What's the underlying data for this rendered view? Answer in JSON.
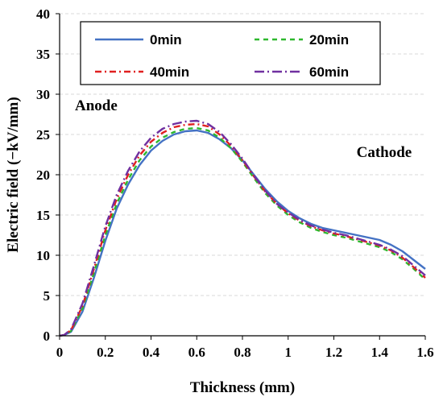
{
  "chart_data": {
    "type": "line",
    "title": "",
    "xlabel": "Thickness (mm)",
    "ylabel": "Electric field (−kV/mm)",
    "xlim": [
      0,
      1.6
    ],
    "ylim": [
      0,
      40
    ],
    "xticks": [
      0,
      0.2,
      0.4,
      0.6,
      0.8,
      1,
      1.2,
      1.4,
      1.6
    ],
    "xtick_labels": [
      "0",
      "0.2",
      "0.4",
      "0.6",
      "0.8",
      "1",
      "1.2",
      "1.4",
      "1.6"
    ],
    "yticks": [
      0,
      5,
      10,
      15,
      20,
      25,
      30,
      35,
      40
    ],
    "ytick_labels": [
      "0",
      "5",
      "10",
      "15",
      "20",
      "25",
      "30",
      "35",
      "40"
    ],
    "grid": "horizontal dashed",
    "legend_position": "top",
    "annotations": [
      {
        "text": "Anode",
        "x": 0.16,
        "y": 28
      },
      {
        "text": "Cathode",
        "x": 1.42,
        "y": 22.2
      }
    ],
    "series": [
      {
        "name": "0min",
        "color": "#4472c4",
        "dash": "solid",
        "x": [
          0,
          0.02,
          0.05,
          0.1,
          0.15,
          0.2,
          0.25,
          0.3,
          0.35,
          0.4,
          0.45,
          0.5,
          0.55,
          0.6,
          0.65,
          0.7,
          0.75,
          0.8,
          0.85,
          0.9,
          0.95,
          1.0,
          1.05,
          1.1,
          1.15,
          1.2,
          1.25,
          1.3,
          1.35,
          1.4,
          1.45,
          1.5,
          1.55,
          1.6
        ],
        "y": [
          0,
          0.1,
          0.5,
          3.0,
          7.2,
          11.8,
          15.8,
          18.8,
          21.2,
          23.0,
          24.2,
          25.0,
          25.4,
          25.5,
          25.2,
          24.4,
          23.3,
          21.8,
          20.0,
          18.2,
          16.7,
          15.5,
          14.6,
          13.9,
          13.4,
          13.1,
          12.8,
          12.5,
          12.2,
          11.9,
          11.3,
          10.5,
          9.4,
          8.3
        ]
      },
      {
        "name": "20min",
        "color": "#2eb82e",
        "dash": "6 5",
        "x": [
          0,
          0.02,
          0.05,
          0.1,
          0.15,
          0.2,
          0.25,
          0.3,
          0.35,
          0.4,
          0.45,
          0.5,
          0.55,
          0.6,
          0.65,
          0.7,
          0.75,
          0.8,
          0.85,
          0.9,
          0.95,
          1.0,
          1.05,
          1.1,
          1.15,
          1.2,
          1.25,
          1.3,
          1.35,
          1.4,
          1.45,
          1.5,
          1.55,
          1.6
        ],
        "y": [
          0,
          0.1,
          0.6,
          3.4,
          7.8,
          12.5,
          16.4,
          19.4,
          21.8,
          23.5,
          24.6,
          25.3,
          25.7,
          25.8,
          25.5,
          24.6,
          23.3,
          21.6,
          19.6,
          17.7,
          16.2,
          15.0,
          14.1,
          13.4,
          12.9,
          12.5,
          12.2,
          11.8,
          11.4,
          11.0,
          10.4,
          9.5,
          8.3,
          7.0
        ]
      },
      {
        "name": "40min",
        "color": "#e02020",
        "dash": "8 4 2 4",
        "x": [
          0,
          0.02,
          0.05,
          0.1,
          0.15,
          0.2,
          0.25,
          0.3,
          0.35,
          0.4,
          0.45,
          0.5,
          0.55,
          0.6,
          0.65,
          0.7,
          0.75,
          0.8,
          0.85,
          0.9,
          0.95,
          1.0,
          1.05,
          1.1,
          1.15,
          1.2,
          1.25,
          1.3,
          1.35,
          1.4,
          1.45,
          1.5,
          1.55,
          1.6
        ],
        "y": [
          0,
          0.1,
          0.7,
          3.7,
          8.3,
          13.1,
          17.0,
          20.0,
          22.4,
          24.1,
          25.2,
          25.9,
          26.2,
          26.3,
          26.0,
          25.0,
          23.6,
          21.8,
          19.8,
          17.9,
          16.4,
          15.2,
          14.3,
          13.6,
          13.1,
          12.7,
          12.4,
          12.0,
          11.6,
          11.2,
          10.6,
          9.7,
          8.5,
          7.2
        ]
      },
      {
        "name": "60min",
        "color": "#7030a0",
        "dash": "12 4 2 4",
        "x": [
          0,
          0.02,
          0.05,
          0.1,
          0.15,
          0.2,
          0.25,
          0.3,
          0.35,
          0.4,
          0.45,
          0.5,
          0.55,
          0.6,
          0.65,
          0.7,
          0.75,
          0.8,
          0.85,
          0.9,
          0.95,
          1.0,
          1.05,
          1.1,
          1.15,
          1.2,
          1.25,
          1.3,
          1.35,
          1.4,
          1.45,
          1.5,
          1.55,
          1.6
        ],
        "y": [
          0,
          0.1,
          0.8,
          4.0,
          8.7,
          13.6,
          17.5,
          20.5,
          22.9,
          24.6,
          25.7,
          26.3,
          26.6,
          26.7,
          26.3,
          25.3,
          23.8,
          22.0,
          19.9,
          18.0,
          16.4,
          15.3,
          14.4,
          13.7,
          13.2,
          12.8,
          12.5,
          12.1,
          11.7,
          11.3,
          10.7,
          9.9,
          8.7,
          7.5
        ]
      }
    ]
  }
}
